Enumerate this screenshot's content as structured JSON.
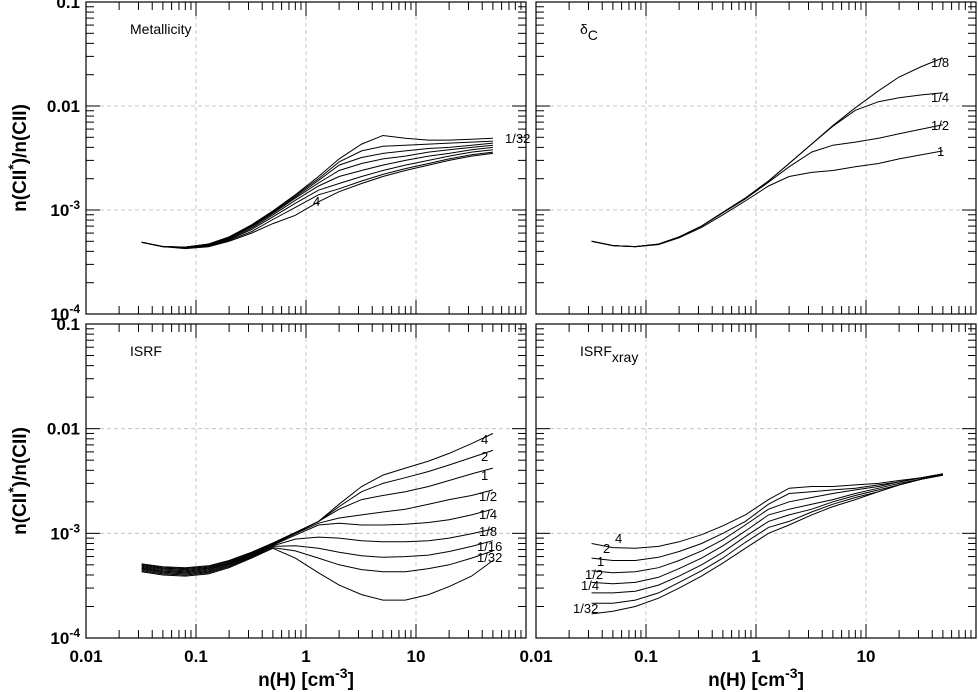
{
  "chart_data": [
    {
      "type": "line",
      "panel": "top-left",
      "title": "Metallicity",
      "xlabel": "",
      "ylabel": "n(CII*)/n(CII)",
      "xscale": "log",
      "yscale": "log",
      "xlim": [
        0.01,
        100
      ],
      "ylim": [
        0.0001,
        0.1
      ],
      "grid": true,
      "x": [
        0.032,
        0.05,
        0.08,
        0.13,
        0.2,
        0.32,
        0.5,
        0.8,
        1.3,
        2,
        3.2,
        5,
        8,
        13,
        20,
        32,
        50
      ],
      "series": [
        {
          "name": "1/32",
          "values": [
            0.00049,
            0.000445,
            0.00044,
            0.00047,
            0.00055,
            0.00072,
            0.00098,
            0.0014,
            0.0021,
            0.0031,
            0.0043,
            0.0052,
            0.0049,
            0.0047,
            0.0047,
            0.0048,
            0.0049
          ]
        },
        {
          "values": [
            0.00049,
            0.000445,
            0.00044,
            0.00047,
            0.00055,
            0.00071,
            0.00097,
            0.00138,
            0.002,
            0.0029,
            0.0037,
            0.0041,
            0.0042,
            0.0043,
            0.0044,
            0.0045,
            0.0046
          ]
        },
        {
          "values": [
            0.00049,
            0.000445,
            0.00044,
            0.00047,
            0.00054,
            0.0007,
            0.00095,
            0.00134,
            0.00192,
            0.0027,
            0.0032,
            0.0035,
            0.0037,
            0.0039,
            0.004,
            0.0042,
            0.0044
          ]
        },
        {
          "values": [
            0.00049,
            0.000445,
            0.000438,
            0.000465,
            0.00054,
            0.00069,
            0.00093,
            0.0013,
            0.00182,
            0.0024,
            0.0028,
            0.0031,
            0.0033,
            0.0036,
            0.0038,
            0.004,
            0.0042
          ]
        },
        {
          "values": [
            0.00049,
            0.000445,
            0.000436,
            0.00046,
            0.00053,
            0.00067,
            0.0009,
            0.00124,
            0.0017,
            0.0021,
            0.0024,
            0.0027,
            0.003,
            0.0033,
            0.0035,
            0.0038,
            0.004
          ]
        },
        {
          "values": [
            0.00049,
            0.000445,
            0.000433,
            0.000455,
            0.00052,
            0.00065,
            0.00086,
            0.00116,
            0.00155,
            0.0018,
            0.0021,
            0.0024,
            0.0027,
            0.003,
            0.0033,
            0.0036,
            0.0038
          ]
        },
        {
          "values": [
            0.00049,
            0.000445,
            0.00043,
            0.00045,
            0.00051,
            0.00062,
            0.00081,
            0.00106,
            0.0014,
            0.0016,
            0.0019,
            0.0022,
            0.0025,
            0.0028,
            0.0031,
            0.0034,
            0.0036
          ]
        },
        {
          "name": "4",
          "values": [
            0.00049,
            0.000445,
            0.000425,
            0.000443,
            0.0005,
            0.0006,
            0.00074,
            0.00089,
            0.0012,
            0.0015,
            0.0018,
            0.0021,
            0.0024,
            0.0027,
            0.003,
            0.0033,
            0.0035
          ]
        }
      ]
    },
    {
      "type": "line",
      "panel": "top-right",
      "title": "δC",
      "xlabel": "",
      "ylabel": "",
      "xscale": "log",
      "yscale": "log",
      "xlim": [
        0.01,
        100
      ],
      "ylim": [
        0.0001,
        0.1
      ],
      "grid": true,
      "x": [
        0.032,
        0.05,
        0.08,
        0.13,
        0.2,
        0.32,
        0.5,
        0.8,
        1.3,
        2,
        3.2,
        5,
        8,
        13,
        20,
        32,
        50
      ],
      "series": [
        {
          "name": "1/8",
          "values": [
            0.0005,
            0.000455,
            0.000445,
            0.00047,
            0.00055,
            0.0007,
            0.00095,
            0.0013,
            0.0019,
            0.0028,
            0.0043,
            0.0065,
            0.0096,
            0.014,
            0.019,
            0.024,
            0.029
          ]
        },
        {
          "name": "1/4",
          "values": [
            0.0005,
            0.000455,
            0.000445,
            0.00047,
            0.00055,
            0.0007,
            0.00095,
            0.0013,
            0.0019,
            0.0028,
            0.0043,
            0.0064,
            0.0091,
            0.011,
            0.012,
            0.0128,
            0.0134
          ]
        },
        {
          "name": "1/2",
          "values": [
            0.0005,
            0.000455,
            0.000445,
            0.00047,
            0.00055,
            0.0007,
            0.00094,
            0.00128,
            0.00185,
            0.0026,
            0.0036,
            0.0042,
            0.0045,
            0.0049,
            0.0054,
            0.006,
            0.0066
          ]
        },
        {
          "name": "1",
          "values": [
            0.0005,
            0.000455,
            0.000443,
            0.000465,
            0.00054,
            0.00068,
            0.0009,
            0.00122,
            0.0017,
            0.0021,
            0.0023,
            0.0024,
            0.0026,
            0.0028,
            0.0031,
            0.0034,
            0.0037
          ]
        }
      ]
    },
    {
      "type": "line",
      "panel": "bottom-left",
      "title": "ISRF",
      "xlabel": "n(H) [cm-3]",
      "ylabel": "n(CII*)/n(CII)",
      "xscale": "log",
      "yscale": "log",
      "xlim": [
        0.01,
        100
      ],
      "ylim": [
        0.0001,
        0.1
      ],
      "grid": true,
      "x": [
        0.032,
        0.05,
        0.08,
        0.13,
        0.2,
        0.32,
        0.5,
        0.8,
        1.3,
        2,
        3.2,
        5,
        8,
        13,
        20,
        32,
        50
      ],
      "series": [
        {
          "name": "4",
          "values": [
            0.00051,
            0.00048,
            0.00047,
            0.00049,
            0.00055,
            0.00066,
            0.00081,
            0.00102,
            0.0013,
            0.0019,
            0.0028,
            0.0036,
            0.0042,
            0.0049,
            0.0058,
            0.0072,
            0.009
          ]
        },
        {
          "name": "2",
          "values": [
            0.0005,
            0.00047,
            0.00046,
            0.00048,
            0.00054,
            0.00065,
            0.0008,
            0.00101,
            0.0013,
            0.0018,
            0.0025,
            0.003,
            0.0034,
            0.0039,
            0.0045,
            0.0053,
            0.0062
          ]
        },
        {
          "name": "1",
          "values": [
            0.00049,
            0.00046,
            0.00045,
            0.00047,
            0.00053,
            0.00064,
            0.00079,
            0.001,
            0.0013,
            0.0017,
            0.0021,
            0.0023,
            0.0025,
            0.0028,
            0.0032,
            0.0037,
            0.0042
          ]
        },
        {
          "name": "1/2",
          "values": [
            0.00048,
            0.00045,
            0.00044,
            0.00046,
            0.00052,
            0.00063,
            0.00078,
            0.00099,
            0.00125,
            0.0014,
            0.0015,
            0.0016,
            0.0017,
            0.0019,
            0.0021,
            0.0023,
            0.0026
          ]
        },
        {
          "name": "1/4",
          "values": [
            0.00047,
            0.00044,
            0.00043,
            0.00045,
            0.00051,
            0.00062,
            0.00077,
            0.00096,
            0.0012,
            0.00125,
            0.0012,
            0.0012,
            0.00122,
            0.00127,
            0.00135,
            0.0015,
            0.0017
          ]
        },
        {
          "name": "1/8",
          "values": [
            0.00046,
            0.00043,
            0.00042,
            0.00044,
            0.0005,
            0.00061,
            0.00076,
            0.00088,
            0.00092,
            0.0009,
            0.00085,
            0.00083,
            0.00083,
            0.00085,
            0.0009,
            0.00099,
            0.0011
          ]
        },
        {
          "name": "1/16",
          "values": [
            0.00045,
            0.00042,
            0.00041,
            0.00043,
            0.00049,
            0.0006,
            0.00075,
            0.00076,
            0.00072,
            0.00066,
            0.00061,
            0.00059,
            0.0006,
            0.00062,
            0.00067,
            0.00075,
            0.00085
          ]
        },
        {
          "values": [
            0.00044,
            0.00041,
            0.0004,
            0.00042,
            0.00048,
            0.00059,
            0.00073,
            0.00068,
            0.00058,
            0.0005,
            0.00045,
            0.00043,
            0.00043,
            0.00046,
            0.0005,
            0.00058,
            0.00068
          ]
        },
        {
          "name": "1/32",
          "values": [
            0.00043,
            0.0004,
            0.00039,
            0.00041,
            0.00047,
            0.00058,
            0.00072,
            0.00058,
            0.00042,
            0.00032,
            0.00026,
            0.00023,
            0.00023,
            0.00026,
            0.00031,
            0.00039,
            0.00055
          ]
        }
      ]
    },
    {
      "type": "line",
      "panel": "bottom-right",
      "title": "ISRFxray",
      "xlabel": "n(H) [cm-3]",
      "ylabel": "",
      "xscale": "log",
      "yscale": "log",
      "xlim": [
        0.01,
        100
      ],
      "ylim": [
        0.0001,
        0.1
      ],
      "grid": true,
      "x": [
        0.032,
        0.05,
        0.08,
        0.13,
        0.2,
        0.32,
        0.5,
        0.8,
        1.3,
        2,
        3.2,
        5,
        8,
        13,
        20,
        32,
        50
      ],
      "series": [
        {
          "name": "4",
          "values": [
            0.0008,
            0.00073,
            0.00072,
            0.00075,
            0.00083,
            0.00097,
            0.00118,
            0.0015,
            0.0021,
            0.0027,
            0.0028,
            0.0028,
            0.0029,
            0.003,
            0.0032,
            0.0034,
            0.0037
          ]
        },
        {
          "name": "2",
          "values": [
            0.00058,
            0.00055,
            0.00055,
            0.00059,
            0.00067,
            0.0008,
            0.001,
            0.0013,
            0.0019,
            0.0024,
            0.0025,
            0.0026,
            0.0027,
            0.0029,
            0.0031,
            0.0034,
            0.0037
          ]
        },
        {
          "name": "1",
          "values": [
            0.00044,
            0.00042,
            0.00043,
            0.00047,
            0.00055,
            0.00068,
            0.00087,
            0.0012,
            0.0017,
            0.002,
            0.0022,
            0.0024,
            0.0026,
            0.0028,
            0.0031,
            0.0034,
            0.0037
          ]
        },
        {
          "name": "1/2",
          "values": [
            0.00034,
            0.00033,
            0.00034,
            0.00038,
            0.00046,
            0.00058,
            0.00076,
            0.00105,
            0.0015,
            0.0017,
            0.0019,
            0.0021,
            0.0024,
            0.0027,
            0.003,
            0.0033,
            0.0037
          ]
        },
        {
          "name": "1/4",
          "values": [
            0.00027,
            0.00027,
            0.00028,
            0.00032,
            0.00039,
            0.0005,
            0.00066,
            0.00093,
            0.0013,
            0.0015,
            0.0017,
            0.002,
            0.0023,
            0.0026,
            0.0029,
            0.0033,
            0.0036
          ]
        },
        {
          "values": [
            0.000215,
            0.000215,
            0.00023,
            0.00027,
            0.00034,
            0.00044,
            0.00058,
            0.00082,
            0.00114,
            0.0013,
            0.0016,
            0.0019,
            0.0022,
            0.0025,
            0.0029,
            0.0033,
            0.0036
          ]
        },
        {
          "name": "1/32",
          "values": [
            0.00017,
            0.00018,
            0.0002,
            0.00024,
            0.0003,
            0.00039,
            0.00052,
            0.00072,
            0.001,
            0.0012,
            0.0015,
            0.0018,
            0.0021,
            0.0025,
            0.0029,
            0.0033,
            0.0036
          ]
        }
      ]
    }
  ],
  "x_tick_labels": [
    "0.01",
    "0.1",
    "1",
    "10"
  ],
  "y_tick_labels": [
    "0.1",
    "0.01",
    "10-3",
    "10-4"
  ]
}
